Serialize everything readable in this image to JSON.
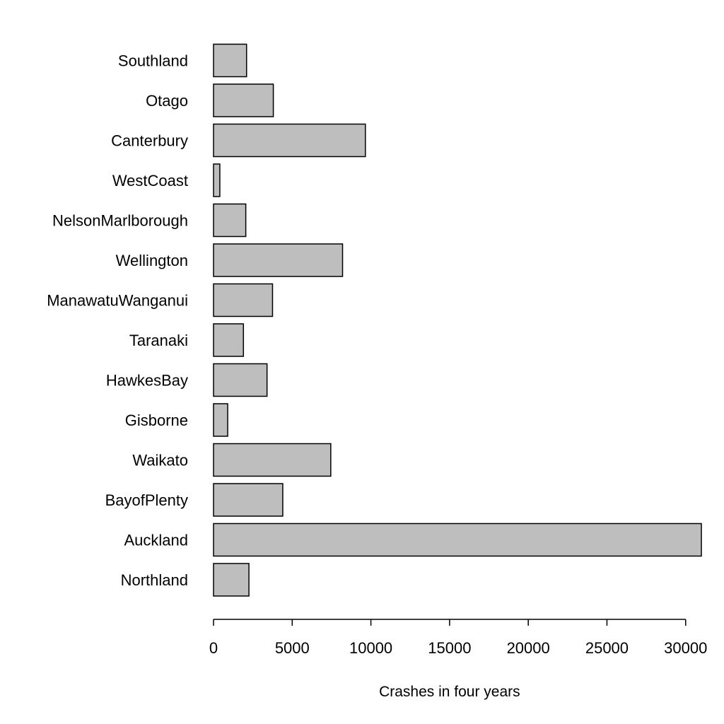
{
  "chart_data": {
    "type": "bar",
    "orientation": "horizontal",
    "categories": [
      "Northland",
      "Auckland",
      "BayofPlenty",
      "Waikato",
      "Gisborne",
      "HawkesBay",
      "Taranaki",
      "ManawatuWanganui",
      "Wellington",
      "NelsonMarlborough",
      "WestCoast",
      "Canterbury",
      "Otago",
      "Southland"
    ],
    "values": [
      2250,
      31000,
      4400,
      7450,
      900,
      3400,
      1900,
      3750,
      8200,
      2050,
      400,
      9650,
      3800,
      2100
    ],
    "xlabel": "Crashes in four years",
    "ylabel": "",
    "xlim": [
      0,
      31000
    ],
    "xticks": [
      0,
      5000,
      10000,
      15000,
      20000,
      25000,
      30000
    ],
    "xtick_labels": [
      "0",
      "5000",
      "10000",
      "15000",
      "20000",
      "25000",
      "30000"
    ],
    "bar_color": "#bebebe",
    "bar_stroke": "#000000",
    "grid": false,
    "legend": "none"
  }
}
